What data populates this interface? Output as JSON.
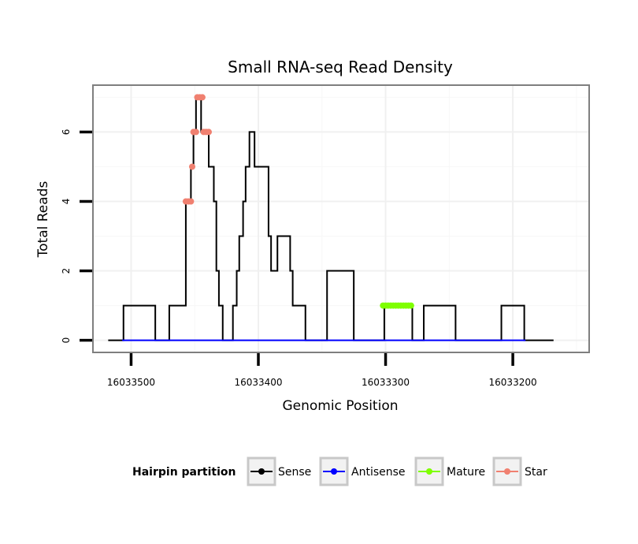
{
  "chart_data": {
    "type": "line",
    "title": "Small RNA-seq Read Density",
    "xlabel": "Genomic Position",
    "ylabel": "Total Reads",
    "x_reversed": true,
    "xlim": [
      16033530,
      16033140
    ],
    "ylim": [
      -0.35,
      7.35
    ],
    "x_ticks": [
      16033500,
      16033400,
      16033300,
      16033200
    ],
    "x_tick_labels": [
      "16033500",
      "16033400",
      "16033300",
      "16033200"
    ],
    "y_ticks": [
      0,
      2,
      4,
      6
    ],
    "y_tick_labels": [
      "0",
      "2",
      "4",
      "6"
    ],
    "grid": true,
    "legend": {
      "title": "Hairpin partition",
      "position": "bottom",
      "entries": [
        {
          "label": "Sense",
          "color": "#000000"
        },
        {
          "label": "Antisense",
          "color": "#0000ff"
        },
        {
          "label": "Mature",
          "color": "#7fff00"
        },
        {
          "label": "Star",
          "color": "#f08070"
        }
      ]
    },
    "series": [
      {
        "name": "Sense",
        "color": "#000000",
        "points": [
          [
            16033518,
            0
          ],
          [
            16033506,
            0
          ],
          [
            16033506,
            1
          ],
          [
            16033481,
            1
          ],
          [
            16033481,
            0
          ],
          [
            16033470,
            0
          ],
          [
            16033470,
            1
          ],
          [
            16033457,
            1
          ],
          [
            16033457,
            4
          ],
          [
            16033453,
            4
          ],
          [
            16033453,
            5
          ],
          [
            16033451,
            5
          ],
          [
            16033451,
            6
          ],
          [
            16033449,
            6
          ],
          [
            16033449,
            7
          ],
          [
            16033445,
            7
          ],
          [
            16033445,
            6
          ],
          [
            16033439,
            6
          ],
          [
            16033439,
            5
          ],
          [
            16033435,
            5
          ],
          [
            16033435,
            4
          ],
          [
            16033433,
            4
          ],
          [
            16033433,
            2
          ],
          [
            16033431,
            2
          ],
          [
            16033431,
            1
          ],
          [
            16033428,
            1
          ],
          [
            16033428,
            0
          ],
          [
            16033420,
            0
          ],
          [
            16033420,
            1
          ],
          [
            16033417,
            1
          ],
          [
            16033417,
            2
          ],
          [
            16033415,
            2
          ],
          [
            16033415,
            3
          ],
          [
            16033412,
            3
          ],
          [
            16033412,
            4
          ],
          [
            16033410,
            4
          ],
          [
            16033410,
            5
          ],
          [
            16033407,
            5
          ],
          [
            16033407,
            6
          ],
          [
            16033403,
            6
          ],
          [
            16033403,
            5
          ],
          [
            16033392,
            5
          ],
          [
            16033392,
            3
          ],
          [
            16033390,
            3
          ],
          [
            16033390,
            2
          ],
          [
            16033385,
            2
          ],
          [
            16033385,
            3
          ],
          [
            16033375,
            3
          ],
          [
            16033375,
            2
          ],
          [
            16033373,
            2
          ],
          [
            16033373,
            1
          ],
          [
            16033363,
            1
          ],
          [
            16033363,
            0
          ],
          [
            16033346,
            0
          ],
          [
            16033346,
            2
          ],
          [
            16033325,
            2
          ],
          [
            16033325,
            0
          ],
          [
            16033301,
            0
          ],
          [
            16033301,
            1
          ],
          [
            16033279,
            1
          ],
          [
            16033279,
            0
          ],
          [
            16033270,
            0
          ],
          [
            16033270,
            1
          ],
          [
            16033245,
            1
          ],
          [
            16033245,
            0
          ],
          [
            16033209,
            0
          ],
          [
            16033209,
            1
          ],
          [
            16033191,
            1
          ],
          [
            16033191,
            0
          ],
          [
            16033168,
            0
          ]
        ]
      },
      {
        "name": "Antisense",
        "color": "#0000ff",
        "points": [
          [
            16033507,
            0
          ],
          [
            16033190,
            0
          ]
        ]
      },
      {
        "name": "Mature",
        "color": "#7fff00",
        "marker": true,
        "points": [
          [
            16033302,
            1
          ],
          [
            16033300,
            1
          ],
          [
            16033298,
            1
          ],
          [
            16033296,
            1
          ],
          [
            16033294,
            1
          ],
          [
            16033292,
            1
          ],
          [
            16033290,
            1
          ],
          [
            16033288,
            1
          ],
          [
            16033286,
            1
          ],
          [
            16033284,
            1
          ],
          [
            16033282,
            1
          ],
          [
            16033280,
            1
          ]
        ]
      },
      {
        "name": "Star",
        "color": "#f08070",
        "marker": true,
        "points": [
          [
            16033457,
            4
          ],
          [
            16033455,
            4
          ],
          [
            16033453,
            4
          ],
          [
            16033452,
            5
          ],
          [
            16033451,
            6
          ],
          [
            16033449,
            6
          ],
          [
            16033448,
            7
          ],
          [
            16033446,
            7
          ],
          [
            16033444,
            7
          ],
          [
            16033443,
            6
          ],
          [
            16033441,
            6
          ],
          [
            16033439,
            6
          ]
        ]
      }
    ]
  }
}
